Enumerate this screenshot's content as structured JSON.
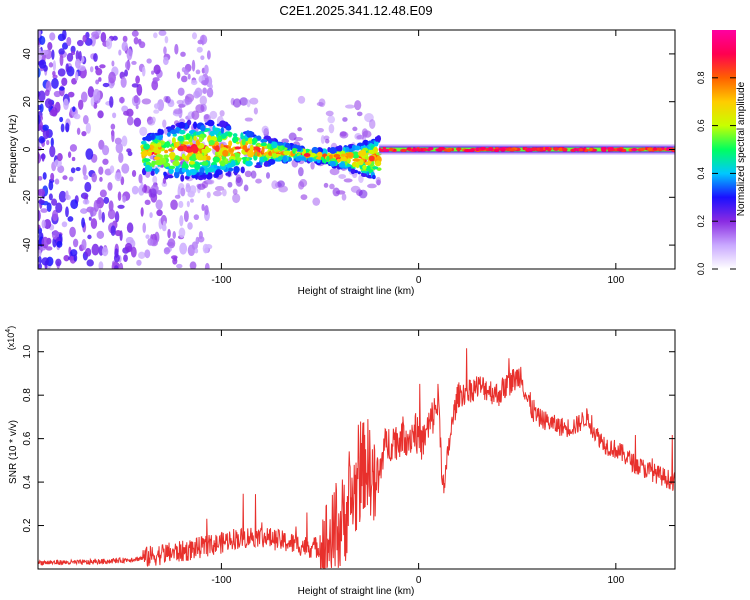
{
  "figure": {
    "title": "C2E1.2025.341.12.48.E09"
  },
  "chart_data": [
    {
      "type": "heatmap",
      "title": "C2E1.2025.341.12.48.E09",
      "xlabel": "Height of straight line (km)",
      "ylabel": "Frequency (Hz)",
      "xlim": [
        -193,
        130
      ],
      "ylim": [
        -50,
        50
      ],
      "xticks": [
        -100,
        0,
        100
      ],
      "xtick_labels": [
        "-100",
        "0",
        "100"
      ],
      "yticks": [
        -40,
        -20,
        0,
        20,
        40
      ],
      "ytick_labels": [
        "-40",
        "-20",
        "0",
        "20",
        "40"
      ],
      "colorbar": {
        "label": "Normalized spectral amplitude",
        "range": [
          0,
          1
        ],
        "ticks": [
          0.0,
          0.2,
          0.4,
          0.6,
          0.8
        ],
        "tick_labels": [
          "0.0",
          "0.2",
          "0.4",
          "0.6",
          "0.8"
        ],
        "colors": [
          "#ffffff",
          "#c9a8ff",
          "#8a2be2",
          "#1a10ff",
          "#00c8ff",
          "#00ff60",
          "#c8ff00",
          "#ffcc00",
          "#ff6000",
          "#ff0050",
          "#ff00a0"
        ]
      },
      "regions": [
        {
          "name": "scattered noise",
          "x_range": [
            -193,
            -135
          ],
          "freq_range": [
            -50,
            50
          ],
          "amplitude": "0.1-0.3"
        },
        {
          "name": "broad signal",
          "x_range": [
            -140,
            -20
          ],
          "freq_range": [
            -12,
            12
          ],
          "amplitude": "0.3-0.8"
        },
        {
          "name": "narrow tone",
          "x_range": [
            -20,
            130
          ],
          "freq_center": 0,
          "amplitude": "0.8-1.0"
        }
      ]
    },
    {
      "type": "line",
      "xlabel": "Height of straight line (km)",
      "ylabel": "SNR (10 * v/v)",
      "yscale_label": "(x10",
      "yscale_exponent": "4",
      "xlim": [
        -193,
        130
      ],
      "ylim": [
        0,
        1.1
      ],
      "xticks": [
        -100,
        0,
        100
      ],
      "xtick_labels": [
        "-100",
        "0",
        "100"
      ],
      "yticks": [
        0.2,
        0.4,
        0.6,
        0.8,
        1.0
      ],
      "ytick_labels": [
        "0.2",
        "0.4",
        "0.6",
        "0.8",
        "1.0"
      ],
      "series": [
        {
          "name": "SNR",
          "color": "#e8302c",
          "x": [
            -193,
            -180,
            -170,
            -160,
            -150,
            -140,
            -130,
            -120,
            -110,
            -100,
            -95,
            -90,
            -85,
            -80,
            -75,
            -70,
            -65,
            -60,
            -55,
            -50,
            -45,
            -40,
            -35,
            -30,
            -27,
            -24,
            -22,
            -20,
            -18,
            -15,
            -12,
            -10,
            -8,
            -5,
            -2,
            0,
            2,
            5,
            8,
            10,
            12,
            13,
            15,
            18,
            20,
            25,
            30,
            35,
            40,
            45,
            50,
            52,
            55,
            60,
            65,
            70,
            75,
            80,
            85,
            90,
            95,
            100,
            105,
            110,
            115,
            120,
            125,
            130
          ],
          "y": [
            0.03,
            0.03,
            0.03,
            0.035,
            0.04,
            0.05,
            0.07,
            0.08,
            0.1,
            0.12,
            0.14,
            0.14,
            0.15,
            0.15,
            0.14,
            0.13,
            0.12,
            0.11,
            0.1,
            0.1,
            0.12,
            0.18,
            0.3,
            0.4,
            0.5,
            0.45,
            0.35,
            0.42,
            0.55,
            0.58,
            0.6,
            0.58,
            0.62,
            0.6,
            0.64,
            0.6,
            0.58,
            0.65,
            0.72,
            0.78,
            0.45,
            0.35,
            0.55,
            0.72,
            0.8,
            0.82,
            0.84,
            0.83,
            0.8,
            0.85,
            0.88,
            0.9,
            0.78,
            0.7,
            0.68,
            0.66,
            0.65,
            0.66,
            0.7,
            0.62,
            0.57,
            0.55,
            0.52,
            0.48,
            0.46,
            0.44,
            0.42,
            0.4
          ]
        }
      ]
    }
  ]
}
